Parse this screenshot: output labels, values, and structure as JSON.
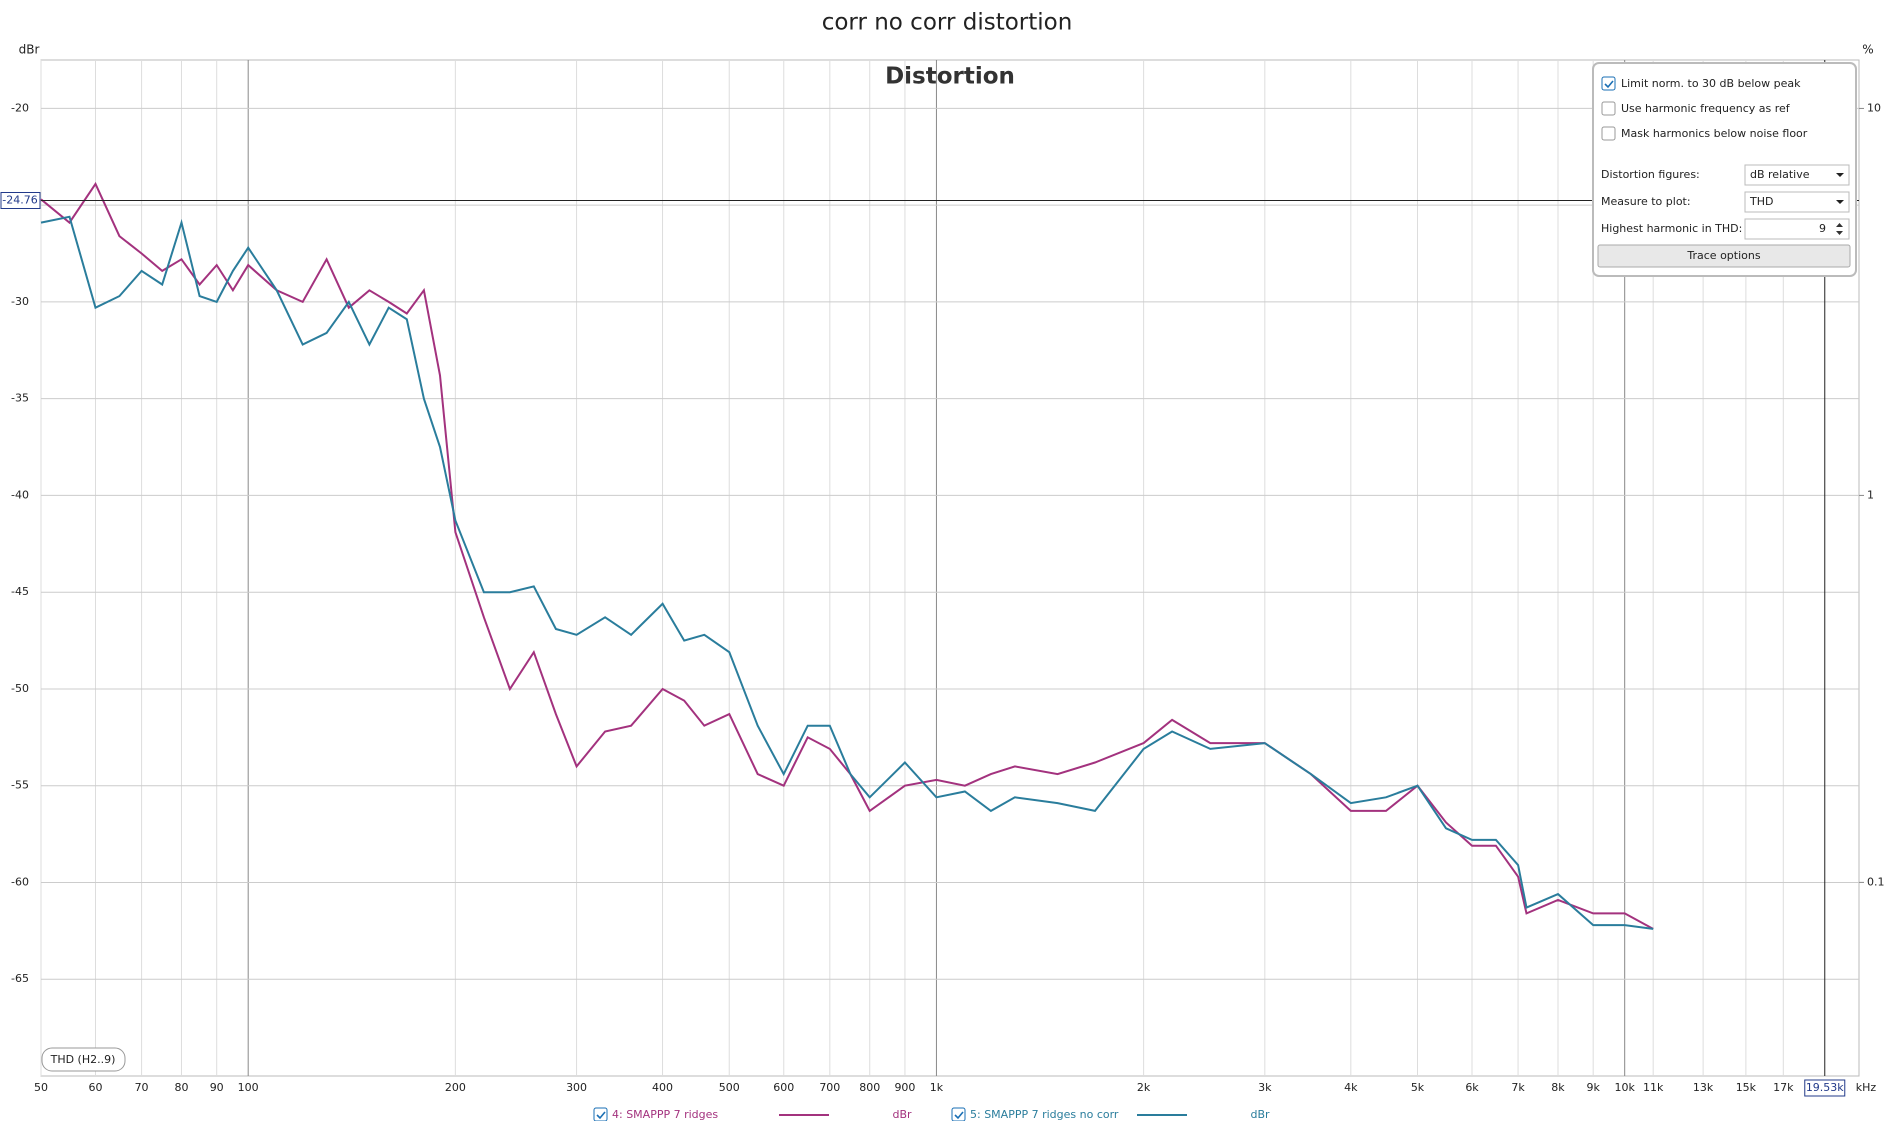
{
  "chart_data": {
    "type": "line",
    "title": "corr no corr distortion",
    "plot_title": "Distortion",
    "y_label": "dBr",
    "y2_label": "%",
    "x_unit": "kHz",
    "xscale": "log",
    "y2scale": "log",
    "xlim": [
      50,
      21900
    ],
    "ylim": [
      -70,
      -17.5
    ],
    "y2lim": [
      0.0316,
      13.34
    ],
    "xticks": [
      50,
      60,
      70,
      80,
      90,
      100,
      200,
      300,
      400,
      500,
      600,
      700,
      800,
      900,
      {
        "value": 1000,
        "label": "1k"
      },
      {
        "value": 2000,
        "label": "2k"
      },
      {
        "value": 3000,
        "label": "3k"
      },
      {
        "value": 4000,
        "label": "4k"
      },
      {
        "value": 5000,
        "label": "5k"
      },
      {
        "value": 6000,
        "label": "6k"
      },
      {
        "value": 7000,
        "label": "7k"
      },
      {
        "value": 8000,
        "label": "8k"
      },
      {
        "value": 9000,
        "label": "9k"
      },
      {
        "value": 10000,
        "label": "10k"
      },
      {
        "value": 11000,
        "label": "11k"
      },
      {
        "value": 13000,
        "label": "13k"
      },
      {
        "value": 15000,
        "label": "15k"
      },
      {
        "value": 17000,
        "label": "17k"
      }
    ],
    "yticks": [
      -20,
      -25,
      -30,
      -35,
      -40,
      -45,
      -50,
      -55,
      -60,
      -65
    ],
    "y2ticks": [
      10,
      1,
      0.1
    ],
    "grid": true,
    "cursor_y": {
      "value": -24.76,
      "label": "-24.76"
    },
    "cursor_x": {
      "value": 19530,
      "label": "19.53k"
    },
    "badge": "THD (H2..9)",
    "x": [
      50,
      55,
      60,
      65,
      70,
      75,
      80,
      85,
      90,
      95,
      100,
      110,
      120,
      130,
      140,
      150,
      160,
      170,
      180,
      190,
      200,
      220,
      240,
      260,
      280,
      300,
      330,
      360,
      400,
      430,
      460,
      500,
      550,
      600,
      650,
      700,
      750,
      800,
      900,
      1000,
      1100,
      1200,
      1300,
      1500,
      1700,
      2000,
      2200,
      2500,
      3000,
      3500,
      4000,
      4500,
      5000,
      5500,
      6000,
      6500,
      7000,
      7200,
      8000,
      9000,
      10000,
      11000
    ],
    "series": [
      {
        "name": "4: SMAPPP 7 ridges",
        "unit": "dBr",
        "color": "#a3327e",
        "checked": true,
        "values": [
          -24.7,
          -25.9,
          -23.9,
          -26.6,
          -27.5,
          -28.4,
          -27.8,
          -29.1,
          -28.1,
          -29.4,
          -28.1,
          -29.4,
          -30,
          -27.8,
          -30.3,
          -29.4,
          -30,
          -30.6,
          -29.4,
          -33.8,
          -41.9,
          -46.3,
          -50,
          -48.1,
          -51.3,
          -54,
          -52.2,
          -51.9,
          -50,
          -50.6,
          -51.9,
          -51.3,
          -54.4,
          -55,
          -52.5,
          -53.1,
          -54.4,
          -56.3,
          -55,
          -54.7,
          -55,
          -54.4,
          -54,
          -54.4,
          -53.8,
          -52.8,
          -51.6,
          -52.8,
          -52.8,
          -54.4,
          -56.3,
          -56.3,
          -55,
          -56.9,
          -58.1,
          -58.1,
          -59.7,
          -61.6,
          -60.9,
          -61.6,
          -61.6,
          -62.4
        ]
      },
      {
        "name": "5: SMAPPP 7 ridges no corr",
        "unit": "dBr",
        "color": "#2a7d9c",
        "checked": true,
        "values": [
          -25.9,
          -25.6,
          -30.3,
          -29.7,
          -28.4,
          -29.1,
          -25.9,
          -29.7,
          -30,
          -28.4,
          -27.2,
          -29.4,
          -32.2,
          -31.6,
          -30,
          -32.2,
          -30.3,
          -30.9,
          -35,
          -37.5,
          -41.3,
          -45,
          -45,
          -44.7,
          -46.9,
          -47.2,
          -46.3,
          -47.2,
          -45.6,
          -47.5,
          -47.2,
          -48.1,
          -51.9,
          -54.4,
          -51.9,
          -51.9,
          -54.4,
          -55.6,
          -53.8,
          -55.6,
          -55.3,
          -56.3,
          -55.6,
          -55.9,
          -56.3,
          -53.1,
          -52.2,
          -53.1,
          -52.8,
          -54.4,
          -55.9,
          -55.6,
          -55,
          -57.2,
          -57.8,
          -57.8,
          -59.1,
          -61.3,
          -60.6,
          -62.2,
          -62.2,
          -62.4
        ]
      }
    ]
  },
  "panel": {
    "checkboxes": [
      {
        "label": "Limit norm. to 30 dB below peak",
        "checked": true
      },
      {
        "label": "Use harmonic frequency as ref",
        "checked": false
      },
      {
        "label": "Mask harmonics below noise floor",
        "checked": false
      }
    ],
    "fields": [
      {
        "label": "Distortion figures:",
        "value": "dB relative",
        "kind": "dropdown"
      },
      {
        "label": "Measure to plot:",
        "value": "THD",
        "kind": "dropdown"
      },
      {
        "label": "Highest harmonic in THD:",
        "value": "9",
        "kind": "spinner"
      }
    ],
    "button": "Trace options"
  }
}
